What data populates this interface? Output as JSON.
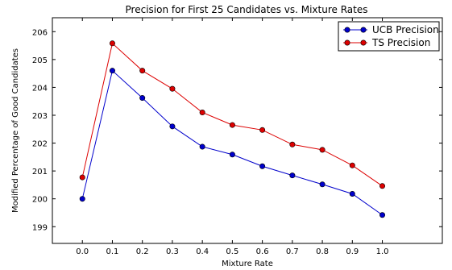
{
  "chart_data": {
    "type": "line",
    "title": "Precision for First 25 Candidates vs. Mixture Rates",
    "xlabel": "Mixture Rate",
    "ylabel": "Modified Percentage of Good Candidates",
    "x": [
      0.0,
      0.1,
      0.2,
      0.3,
      0.4,
      0.5,
      0.6,
      0.7,
      0.8,
      0.9,
      1.0
    ],
    "x_tick_labels": [
      "0.0",
      "0.1",
      "0.2",
      "0.3",
      "0.4",
      "0.5",
      "0.6",
      "0.7",
      "0.8",
      "0.9",
      "1.0"
    ],
    "y_ticks": [
      199,
      200,
      201,
      202,
      203,
      204,
      205,
      206
    ],
    "y_tick_labels": [
      "199",
      "200",
      "201",
      "202",
      "203",
      "204",
      "205",
      "206"
    ],
    "xlim": [
      -0.1,
      1.2
    ],
    "ylim": [
      198.4,
      206.5
    ],
    "grid": false,
    "legend_position": "top-right",
    "series": [
      {
        "name": "UCB Precision",
        "color": "#0000cc",
        "values": [
          200.0,
          204.6,
          203.62,
          202.6,
          201.87,
          201.59,
          201.17,
          200.84,
          200.52,
          200.18,
          199.42
        ]
      },
      {
        "name": "TS Precision",
        "color": "#dd0000",
        "values": [
          200.77,
          205.58,
          204.6,
          203.95,
          203.1,
          202.65,
          202.47,
          201.95,
          201.76,
          201.2,
          200.46
        ]
      }
    ]
  }
}
